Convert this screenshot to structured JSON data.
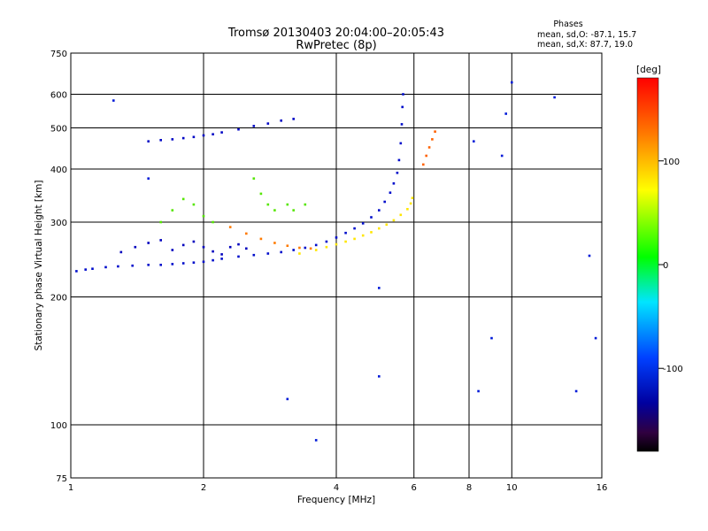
{
  "chart_data": {
    "type": "scatter",
    "title": "Tromsø 20130403 20:04:00–20:05:43",
    "subtitle": "RwPretec (8p)",
    "xlabel": "Frequency [MHz]",
    "ylabel": "Stationary phase Virtual Height [km]",
    "x_scale": "log",
    "y_scale": "log",
    "xlim": [
      1,
      16
    ],
    "ylim": [
      75,
      750
    ],
    "x_ticks": [
      1,
      2,
      4,
      6,
      8,
      10,
      16
    ],
    "x_tick_labels": [
      "1",
      "2",
      "4",
      "6",
      "8",
      "10",
      "16"
    ],
    "y_ticks": [
      75,
      100,
      200,
      300,
      400,
      500,
      600,
      750
    ],
    "y_tick_labels": [
      "75",
      "100",
      "200",
      "300",
      "400",
      "500",
      "600",
      "750"
    ],
    "grid": true,
    "phase_stats": {
      "header": "Phases",
      "o_line": "mean, sd,O: -87.1, 15.7",
      "x_line": "mean, sd,X: 87.7, 19.0"
    },
    "colorbar": {
      "label": "[deg]",
      "min": -180,
      "max": 180,
      "ticks": [
        100,
        0,
        -100
      ],
      "tick_labels": [
        "100",
        "0",
        "-100"
      ]
    },
    "series": [
      {
        "trace": "lower-blue-trace",
        "phase_deg": -100,
        "x": [
          1.03,
          1.08,
          1.12,
          1.2,
          1.28,
          1.38,
          1.5,
          1.6,
          1.7,
          1.8,
          1.9,
          2.0,
          2.1,
          2.2,
          2.4,
          2.6,
          2.8,
          3.0,
          3.2,
          3.4,
          3.6,
          3.8,
          4.0,
          4.2,
          4.4,
          4.6,
          4.8,
          5.0,
          5.15,
          5.3,
          5.4,
          5.5,
          5.55,
          5.6,
          5.63,
          5.65,
          5.67
        ],
        "y": [
          230,
          232,
          233,
          235,
          236,
          237,
          238,
          238,
          239,
          240,
          241,
          242,
          244,
          246,
          249,
          251,
          253,
          255,
          258,
          261,
          265,
          270,
          276,
          283,
          290,
          298,
          308,
          320,
          335,
          352,
          370,
          392,
          420,
          460,
          510,
          560,
          600
        ]
      },
      {
        "trace": "upper-yellow-trace",
        "phase_deg": 100,
        "x": [
          3.3,
          3.6,
          3.8,
          4.0,
          4.2,
          4.4,
          4.6,
          4.8,
          5.0,
          5.2,
          5.4,
          5.6,
          5.8,
          5.9,
          5.95
        ],
        "y": [
          253,
          258,
          262,
          266,
          270,
          274,
          279,
          284,
          290,
          296,
          303,
          312,
          322,
          332,
          342
        ]
      },
      {
        "trace": "mid-blue-cluster",
        "phase_deg": -110,
        "x": [
          1.3,
          1.4,
          1.5,
          1.6,
          1.7,
          1.8,
          1.9,
          2.0,
          2.1,
          2.2,
          2.3,
          2.4,
          2.5
        ],
        "y": [
          255,
          262,
          268,
          272,
          258,
          265,
          270,
          262,
          256,
          252,
          262,
          266,
          260
        ]
      },
      {
        "trace": "yellow-green-cluster",
        "phase_deg": 60,
        "x": [
          1.6,
          1.7,
          1.8,
          1.9,
          2.0,
          2.1,
          2.6,
          2.7,
          2.8,
          2.9,
          3.1,
          3.2,
          3.4
        ],
        "y": [
          300,
          320,
          340,
          330,
          310,
          300,
          380,
          350,
          330,
          320,
          330,
          320,
          330
        ]
      },
      {
        "trace": "orange-lower-arcs",
        "phase_deg": 130,
        "x": [
          2.3,
          2.5,
          2.7,
          2.9,
          3.1,
          3.3,
          3.5
        ],
        "y": [
          292,
          282,
          274,
          268,
          264,
          261,
          260
        ]
      },
      {
        "trace": "high-blue-trace",
        "phase_deg": -105,
        "x": [
          1.5,
          1.6,
          1.7,
          1.8,
          1.9,
          2.0,
          2.1,
          2.2,
          2.4,
          2.6,
          2.8,
          3.0,
          3.2
        ],
        "y": [
          465,
          468,
          470,
          473,
          476,
          480,
          483,
          488,
          496,
          505,
          512,
          520,
          525
        ]
      },
      {
        "trace": "high-orange-trace",
        "phase_deg": 140,
        "x": [
          6.3,
          6.4,
          6.5,
          6.6,
          6.7
        ],
        "y": [
          410,
          430,
          450,
          470,
          490
        ]
      },
      {
        "trace": "scattered-noise",
        "phase_deg": -90,
        "x": [
          1.25,
          1.5,
          3.1,
          3.6,
          5.0,
          5.0,
          8.2,
          8.4,
          9.0,
          9.5,
          9.7,
          10.0,
          12.5,
          14.0,
          15.0,
          15.5
        ],
        "y": [
          580,
          380,
          115,
          92,
          210,
          130,
          465,
          120,
          160,
          430,
          540,
          640,
          590,
          120,
          250,
          160
        ]
      }
    ]
  }
}
